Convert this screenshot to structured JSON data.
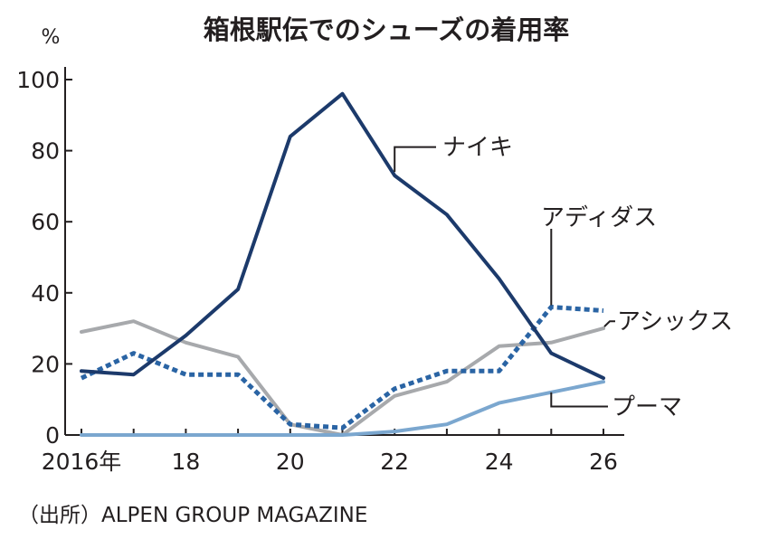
{
  "chart_data": {
    "type": "line",
    "title": "箱根駅伝でのシューズの着用率",
    "unit_label": "%",
    "xlabel": "",
    "ylabel": "",
    "x": [
      2016,
      2017,
      2018,
      2019,
      2020,
      2021,
      2022,
      2023,
      2024,
      2025,
      2026
    ],
    "x_ticks": [
      2016,
      2018,
      2020,
      2022,
      2024,
      2026
    ],
    "x_tick_labels": [
      "2016年",
      "18",
      "20",
      "22",
      "24",
      "26"
    ],
    "ylim": [
      0,
      100
    ],
    "y_ticks": [
      0,
      20,
      40,
      60,
      80,
      100
    ],
    "y_tick_labels": [
      "0",
      "20",
      "40",
      "60",
      "80",
      "100"
    ],
    "grid": false,
    "series": [
      {
        "name": "ナイキ",
        "color": "#1c3a6b",
        "style": "solid",
        "values": [
          18,
          17,
          28,
          41,
          84,
          96,
          73,
          62,
          44,
          23,
          16
        ]
      },
      {
        "name": "アディダス",
        "color": "#2a64a4",
        "style": "dotted",
        "values": [
          16,
          23,
          17,
          17,
          3,
          2,
          13,
          18,
          18,
          36,
          35
        ]
      },
      {
        "name": "アシックス",
        "color": "#a7a9ac",
        "style": "solid",
        "values": [
          29,
          32,
          26,
          22,
          3,
          0,
          11,
          15,
          25,
          26,
          30
        ]
      },
      {
        "name": "プーマ",
        "color": "#7ba7cf",
        "style": "solid",
        "values": [
          0,
          0,
          0,
          0,
          0,
          0,
          1,
          3,
          9,
          12,
          15
        ]
      }
    ],
    "source": "（出所）ALPEN GROUP MAGAZINE"
  }
}
